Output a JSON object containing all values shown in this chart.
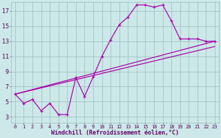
{
  "xlabel": "Windchill (Refroidissement éolien,°C)",
  "bg_color": "#cce8e8",
  "grid_color": "#99bbbb",
  "line_color": "#aa00aa",
  "xlim": [
    -0.5,
    23.5
  ],
  "ylim": [
    2.2,
    18.2
  ],
  "xticks": [
    0,
    1,
    2,
    3,
    4,
    5,
    6,
    7,
    8,
    9,
    10,
    11,
    12,
    13,
    14,
    15,
    16,
    17,
    18,
    19,
    20,
    21,
    22,
    23
  ],
  "yticks": [
    3,
    5,
    7,
    9,
    11,
    13,
    15,
    17
  ],
  "line1_x": [
    0,
    1,
    2,
    3,
    4,
    5,
    6,
    7,
    8,
    9,
    10,
    11,
    12,
    13,
    14,
    15,
    16,
    17,
    18,
    19,
    20,
    21,
    22,
    23
  ],
  "line1_y": [
    6.0,
    4.8,
    5.3,
    3.8,
    4.8,
    3.3,
    3.3,
    8.2,
    5.7,
    8.3,
    11.0,
    13.2,
    15.2,
    16.2,
    17.8,
    17.8,
    17.5,
    17.8,
    15.7,
    13.3,
    13.3,
    13.3,
    13.0,
    13.0
  ],
  "line2_x": [
    0,
    23
  ],
  "line2_y": [
    6.0,
    13.0
  ],
  "line3_x": [
    0,
    23
  ],
  "line3_y": [
    6.0,
    12.3
  ],
  "xlabel_fontsize": 6.0,
  "xlabel_color": "#660066",
  "tick_fontsize_x": 5.0,
  "tick_fontsize_y": 6.0
}
